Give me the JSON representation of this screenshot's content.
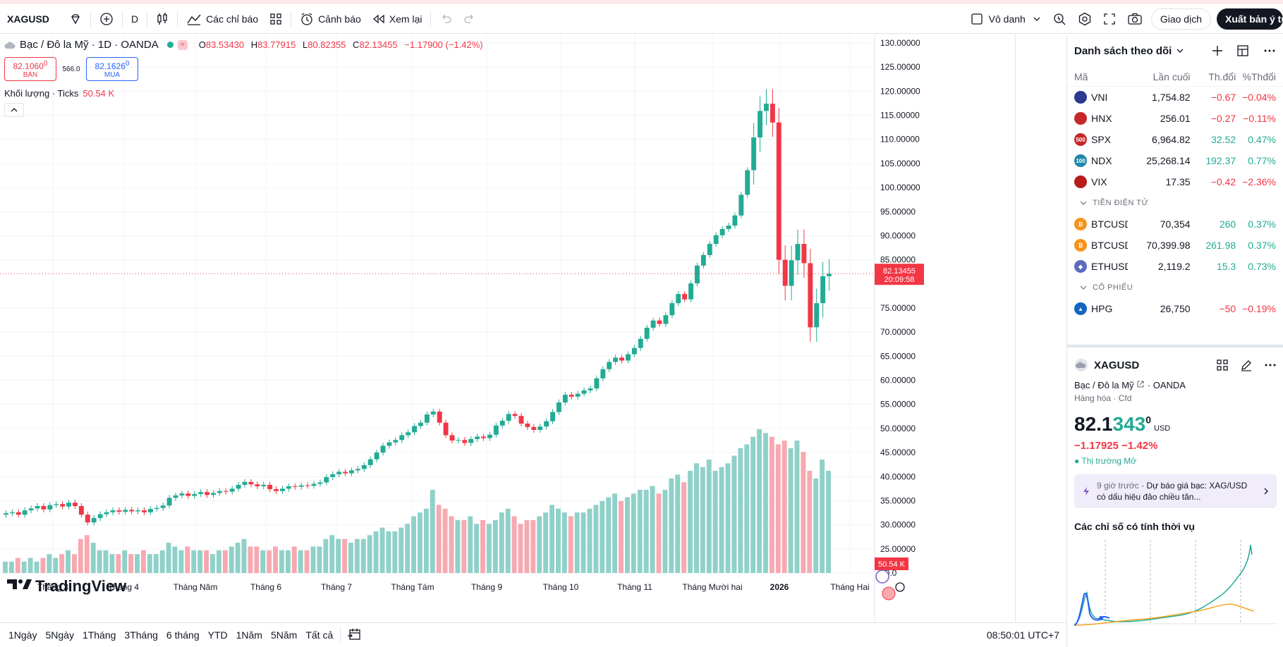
{
  "toolbar": {
    "symbol": "XAGUSD",
    "interval": "D",
    "indicators_label": "Các chỉ báo",
    "alerts_label": "Cảnh báo",
    "replay_label": "Xem lại",
    "layout_name": "Vô danh",
    "trade_label": "Giao dịch",
    "publish_label": "Xuất bản ý tưởng"
  },
  "legend": {
    "title": "Bạc / Đô la Mỹ · 1D · OANDA",
    "o_label": "O",
    "o": "83.53430",
    "h_label": "H",
    "h": "83.77915",
    "l_label": "L",
    "l": "80.82355",
    "c_label": "C",
    "c": "82.13455",
    "change": "−1.17900 (−1.42%)"
  },
  "bidask": {
    "bid_price": "82.1060",
    "bid_sup": "0",
    "bid_label": "BÁN",
    "spread": "566.0",
    "ask_price": "82.1626",
    "ask_sup": "0",
    "ask_label": "MUA"
  },
  "volume": {
    "label": "Khối lượng · Ticks",
    "value": "50.54 K"
  },
  "price_tag": {
    "price": "82.13455",
    "countdown": "20:09:58"
  },
  "volume_tag": "50.54 K",
  "logo_text": "TradingView",
  "ranges": [
    "1Ngày",
    "5Ngày",
    "1Tháng",
    "3Tháng",
    "6 tháng",
    "YTD",
    "1Năm",
    "5Năm",
    "Tất cả"
  ],
  "clock": "08:50:01 UTC+7",
  "chart_data": {
    "type": "candlestick",
    "y_ticks": [
      "130.00000",
      "125.00000",
      "120.00000",
      "115.00000",
      "110.00000",
      "105.00000",
      "100.00000",
      "95.00000",
      "90.00000",
      "85.00000",
      "75.00000",
      "70.00000",
      "65.00000",
      "60.00000",
      "55.00000",
      "50.00000",
      "45.00000",
      "40.00000",
      "35.00000",
      "30.00000",
      "25.00000",
      "20.0"
    ],
    "ylim": [
      20,
      130
    ],
    "x_ticks": [
      "Tháng 3",
      "Tháng 4",
      "Tháng Năm",
      "Tháng 6",
      "Tháng 7",
      "Tháng Tám",
      "Tháng 9",
      "Tháng 10",
      "Tháng 11",
      "Tháng Mười hai",
      "2026",
      "Tháng Hai"
    ],
    "close_series": [
      32.4,
      32.6,
      32.1,
      33.0,
      33.4,
      33.9,
      33.2,
      34.1,
      34.3,
      33.8,
      34.6,
      33.9,
      32.1,
      30.5,
      31.4,
      32.2,
      32.6,
      33.0,
      32.7,
      33.1,
      32.8,
      33.0,
      32.6,
      33.3,
      33.5,
      34.0,
      35.6,
      36.1,
      36.5,
      36.0,
      36.4,
      36.8,
      36.2,
      36.6,
      37.0,
      36.9,
      37.5,
      38.3,
      38.9,
      38.4,
      38.0,
      38.3,
      37.4,
      37.0,
      37.5,
      38.0,
      37.9,
      38.2,
      38.1,
      38.5,
      38.8,
      39.9,
      40.5,
      41.0,
      40.7,
      41.3,
      41.6,
      42.4,
      43.6,
      45.0,
      46.4,
      47.1,
      47.6,
      48.6,
      49.2,
      50.5,
      51.2,
      52.9,
      53.5,
      51.2,
      48.6,
      47.5,
      47.6,
      47.0,
      47.8,
      48.3,
      48.0,
      48.7,
      50.6,
      51.6,
      53.0,
      52.6,
      51.0,
      50.3,
      49.7,
      50.4,
      51.5,
      53.4,
      55.4,
      57.0,
      56.6,
      57.2,
      57.9,
      58.3,
      60.4,
      62.3,
      63.8,
      64.7,
      64.1,
      65.4,
      66.7,
      68.6,
      70.9,
      72.4,
      71.7,
      73.5,
      76.0,
      77.9,
      76.8,
      80.1,
      83.8,
      86.0,
      88.3,
      90.1,
      91.4,
      92.1,
      94.2,
      98.5,
      103.6,
      110.4,
      115.9,
      117.4,
      113.5,
      85.0,
      79.6,
      84.9,
      88.3,
      84.3,
      71.0,
      76.0,
      81.6,
      82.1
    ],
    "volume_series": [
      3,
      3,
      4,
      3,
      4,
      3,
      4,
      5,
      4,
      5,
      6,
      5,
      9,
      10,
      8,
      6,
      6,
      5,
      5,
      6,
      5,
      5,
      6,
      5,
      5,
      6,
      8,
      7,
      6,
      7,
      6,
      6,
      6,
      5,
      6,
      6,
      7,
      8,
      9,
      7,
      7,
      6,
      6,
      7,
      6,
      6,
      7,
      6,
      6,
      7,
      7,
      9,
      10,
      9,
      9,
      8,
      9,
      9,
      10,
      11,
      12,
      11,
      11,
      12,
      13,
      15,
      16,
      17,
      22,
      18,
      17,
      15,
      14,
      14,
      15,
      13,
      14,
      13,
      14,
      16,
      17,
      15,
      13,
      14,
      14,
      15,
      16,
      18,
      17,
      16,
      15,
      16,
      16,
      17,
      18,
      19,
      20,
      21,
      19,
      20,
      21,
      22,
      22,
      23,
      21,
      22,
      25,
      26,
      24,
      27,
      29,
      28,
      30,
      27,
      28,
      29,
      31,
      33,
      34,
      36,
      38,
      37,
      36,
      34,
      35,
      33,
      35,
      32,
      27,
      25,
      30,
      27
    ],
    "volume_unit": "relative",
    "last_price": 82.13455
  },
  "watchlist": {
    "title": "Danh sách theo dõi",
    "columns": {
      "symbol": "Mã",
      "last": "Lần cuối",
      "change": "Th.đổi",
      "pct": "%Thđổi"
    },
    "rows": [
      {
        "symbol": "VNI",
        "icon_text": "",
        "icon_color": "#2b3a8f",
        "last": "1,754.82",
        "change": "−0.67",
        "pct": "−0.04%",
        "dir": "neg"
      },
      {
        "symbol": "HNX",
        "icon_text": "",
        "icon_color": "#c62828",
        "last": "256.01",
        "change": "−0.27",
        "pct": "−0.11%",
        "dir": "neg"
      },
      {
        "symbol": "SPX",
        "icon_text": "500",
        "icon_color": "#c62828",
        "last": "6,964.82",
        "change": "32.52",
        "pct": "0.47%",
        "dir": "pos"
      },
      {
        "symbol": "NDX",
        "icon_text": "100",
        "icon_color": "#1e88a8",
        "last": "25,268.14",
        "change": "192.37",
        "pct": "0.77%",
        "dir": "pos"
      },
      {
        "symbol": "VIX",
        "icon_text": "",
        "icon_color": "#b71c1c",
        "last": "17.35",
        "change": "−0.42",
        "pct": "−2.36%",
        "dir": "neg"
      }
    ],
    "section_crypto": "TIỀN ĐIỆN TỬ",
    "crypto_rows": [
      {
        "symbol": "BTCUSD",
        "icon_text": "₿",
        "icon_color": "#f7931a",
        "last": "70,354",
        "change": "260",
        "pct": "0.37%",
        "dir": "pos"
      },
      {
        "symbol": "BTCUSD",
        "icon_text": "₿",
        "icon_color": "#f7931a",
        "last": "70,399.98",
        "change": "261.98",
        "pct": "0.37%",
        "dir": "pos"
      },
      {
        "symbol": "ETHUSD",
        "icon_text": "◆",
        "icon_color": "#5c6bc0",
        "last": "2,119.2",
        "change": "15.3",
        "pct": "0.73%",
        "dir": "pos"
      }
    ],
    "section_stocks": "CỔ PHIẾU",
    "stock_rows": [
      {
        "symbol": "HPG",
        "icon_text": "▲",
        "icon_color": "#1565c0",
        "last": "26,750",
        "change": "−50",
        "pct": "−0.19%",
        "dir": "neg"
      }
    ]
  },
  "detail": {
    "symbol": "XAGUSD",
    "name": "Bạc / Đô la Mỹ",
    "exchange": "OANDA",
    "category": "Hàng hóa · Cfd",
    "price_main": "82.1",
    "price_green": "343",
    "price_sup": "0",
    "currency": "USD",
    "change": "−1.17925  −1.42%",
    "market_status": "Thị trường Mở",
    "news_time": "9 giờ trước",
    "news_title": "Dự báo giá bạc: XAG/USD có dấu hiệu đảo chiều tăn...",
    "seasonal_title": "Các chỉ số có tính thời vụ"
  },
  "colors": {
    "up": "#22ab94",
    "down": "#f23645",
    "vol_up": "#8fd1c8",
    "vol_down": "#f7a9b1",
    "accent": "#2962ff"
  }
}
